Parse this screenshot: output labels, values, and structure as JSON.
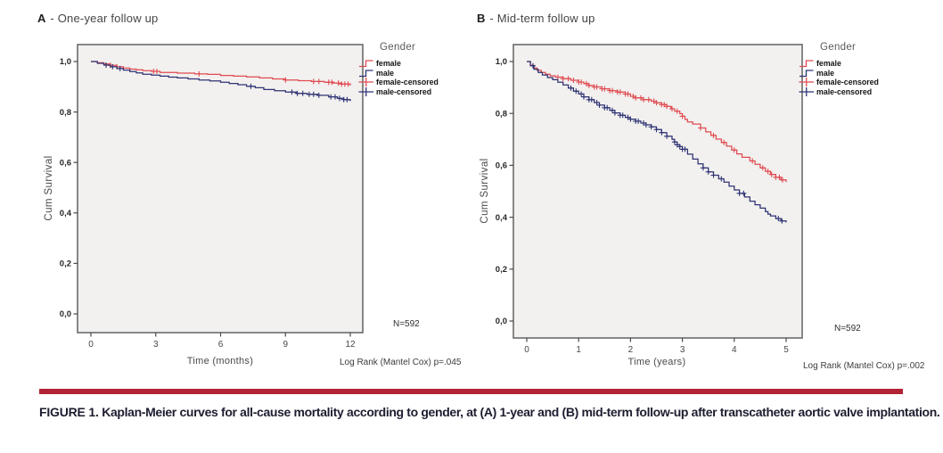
{
  "page": {
    "caption_bold": "FIGURE 1.",
    "caption_rest": " Kaplan-Meier curves for all-cause mortality according to gender, at (A) 1-year and (B) mid-term follow-up after transcatheter aortic valve implantation."
  },
  "colors": {
    "female": "#df4a50",
    "male": "#2f3273",
    "plot_bg": "#f2f1ef",
    "frame": "#6b6b6b",
    "tick": "#4a4a4a",
    "accent_bar": "#b22335"
  },
  "chart_data": [
    {
      "id": "A",
      "type": "line",
      "panel_label": "A",
      "title_text": " - One-year follow up",
      "title": "A - One-year follow up",
      "xlabel": "Time (months)",
      "ylabel": "Cum Survival",
      "xlim": [
        0,
        12
      ],
      "ylim": [
        0.0,
        1.0
      ],
      "xticks": [
        0,
        3,
        6,
        9,
        12
      ],
      "ytick_values": [
        1.0,
        0.8,
        0.6,
        0.4,
        0.2,
        0.0
      ],
      "ytick_labels": [
        "1,0",
        "0,8",
        "0,6",
        "0,4",
        "0,2",
        "0,0"
      ],
      "grid": false,
      "legend": {
        "position": "right-top",
        "title": "Gender",
        "entries": [
          "female",
          "male",
          "female-censored",
          "male-censored"
        ]
      },
      "n_label": "N=592",
      "logrank_label": "Log Rank (Mantel Cox) p=.045",
      "series": [
        {
          "name": "female",
          "color_key": "female",
          "points": [
            [
              0,
              1.0
            ],
            [
              0.3,
              0.995
            ],
            [
              0.6,
              0.99
            ],
            [
              0.9,
              0.985
            ],
            [
              1.2,
              0.979
            ],
            [
              1.5,
              0.974
            ],
            [
              1.8,
              0.97
            ],
            [
              2.1,
              0.967
            ],
            [
              2.4,
              0.964
            ],
            [
              2.8,
              0.961
            ],
            [
              3.2,
              0.957
            ],
            [
              4.0,
              0.954
            ],
            [
              4.8,
              0.951
            ],
            [
              5.4,
              0.949
            ],
            [
              6.0,
              0.945
            ],
            [
              6.6,
              0.942
            ],
            [
              7.2,
              0.939
            ],
            [
              7.8,
              0.935
            ],
            [
              8.4,
              0.931
            ],
            [
              9.0,
              0.927
            ],
            [
              9.6,
              0.924
            ],
            [
              10.2,
              0.921
            ],
            [
              10.8,
              0.918
            ],
            [
              11.2,
              0.915
            ],
            [
              11.6,
              0.911
            ],
            [
              12,
              0.905
            ]
          ],
          "censored_times": [
            0.9,
            1.2,
            2.9,
            3.05,
            5.0,
            9.0,
            10.3,
            10.55,
            11.0,
            11.15,
            11.45,
            11.6,
            11.75,
            11.9
          ]
        },
        {
          "name": "male",
          "color_key": "male",
          "points": [
            [
              0,
              1.0
            ],
            [
              0.3,
              0.993
            ],
            [
              0.6,
              0.986
            ],
            [
              0.9,
              0.979
            ],
            [
              1.2,
              0.972
            ],
            [
              1.5,
              0.966
            ],
            [
              1.8,
              0.96
            ],
            [
              2.1,
              0.955
            ],
            [
              2.4,
              0.95
            ],
            [
              2.8,
              0.946
            ],
            [
              3.2,
              0.942
            ],
            [
              3.6,
              0.938
            ],
            [
              4.0,
              0.935
            ],
            [
              4.5,
              0.931
            ],
            [
              5.0,
              0.927
            ],
            [
              5.5,
              0.923
            ],
            [
              6.0,
              0.918
            ],
            [
              6.4,
              0.913
            ],
            [
              6.8,
              0.908
            ],
            [
              7.2,
              0.902
            ],
            [
              7.6,
              0.896
            ],
            [
              8.0,
              0.889
            ],
            [
              8.5,
              0.884
            ],
            [
              9.0,
              0.879
            ],
            [
              9.5,
              0.874
            ],
            [
              10.0,
              0.87
            ],
            [
              10.5,
              0.866
            ],
            [
              11.0,
              0.86
            ],
            [
              11.4,
              0.854
            ],
            [
              11.7,
              0.849
            ],
            [
              12,
              0.843
            ]
          ],
          "censored_times": [
            0.7,
            1.0,
            1.35,
            7.4,
            9.3,
            9.55,
            9.8,
            10.1,
            10.3,
            10.55,
            11.1,
            11.3,
            11.5,
            11.7,
            11.85
          ]
        }
      ]
    },
    {
      "id": "B",
      "type": "line",
      "panel_label": "B",
      "title_text": " - Mid-term follow up",
      "title": "B - Mid-term follow up",
      "xlabel": "Time (years)",
      "ylabel": "Cum Survival",
      "xlim": [
        0,
        5
      ],
      "ylim": [
        0.0,
        1.0
      ],
      "xticks": [
        0,
        1,
        2,
        3,
        4,
        5
      ],
      "ytick_values": [
        1.0,
        0.8,
        0.6,
        0.4,
        0.2,
        0.0
      ],
      "ytick_labels": [
        "1,0",
        "0,8",
        "0,6",
        "0,4",
        "0,2",
        "0,0"
      ],
      "grid": false,
      "legend": {
        "position": "right-top",
        "title": "Gender",
        "entries": [
          "female",
          "male",
          "female-censored",
          "male-censored"
        ]
      },
      "n_label": "N=592",
      "logrank_label": "Log Rank (Mantel Cox) p=.002",
      "series": [
        {
          "name": "female",
          "color_key": "female",
          "points": [
            [
              0,
              1.0
            ],
            [
              0.07,
              0.986
            ],
            [
              0.13,
              0.975
            ],
            [
              0.2,
              0.966
            ],
            [
              0.28,
              0.958
            ],
            [
              0.36,
              0.951
            ],
            [
              0.45,
              0.945
            ],
            [
              0.55,
              0.94
            ],
            [
              0.7,
              0.934
            ],
            [
              0.85,
              0.928
            ],
            [
              1.0,
              0.921
            ],
            [
              1.1,
              0.915
            ],
            [
              1.2,
              0.908
            ],
            [
              1.3,
              0.902
            ],
            [
              1.45,
              0.895
            ],
            [
              1.6,
              0.888
            ],
            [
              1.75,
              0.882
            ],
            [
              1.9,
              0.875
            ],
            [
              2.0,
              0.866
            ],
            [
              2.1,
              0.86
            ],
            [
              2.25,
              0.853
            ],
            [
              2.4,
              0.847
            ],
            [
              2.5,
              0.841
            ],
            [
              2.6,
              0.834
            ],
            [
              2.7,
              0.827
            ],
            [
              2.78,
              0.818
            ],
            [
              2.85,
              0.809
            ],
            [
              2.95,
              0.799
            ],
            [
              3.0,
              0.789
            ],
            [
              3.05,
              0.777
            ],
            [
              3.1,
              0.767
            ],
            [
              3.2,
              0.759
            ],
            [
              3.35,
              0.744
            ],
            [
              3.45,
              0.729
            ],
            [
              3.55,
              0.715
            ],
            [
              3.65,
              0.701
            ],
            [
              3.75,
              0.688
            ],
            [
              3.85,
              0.674
            ],
            [
              3.95,
              0.659
            ],
            [
              4.05,
              0.644
            ],
            [
              4.15,
              0.631
            ],
            [
              4.3,
              0.617
            ],
            [
              4.4,
              0.604
            ],
            [
              4.5,
              0.59
            ],
            [
              4.6,
              0.577
            ],
            [
              4.7,
              0.565
            ],
            [
              4.8,
              0.554
            ],
            [
              4.9,
              0.544
            ],
            [
              5.0,
              0.535
            ]
          ],
          "censored_times": [
            0.6,
            0.7,
            0.8,
            0.9,
            1.0,
            1.05,
            1.15,
            1.2,
            1.3,
            1.35,
            1.45,
            1.5,
            1.6,
            1.65,
            1.75,
            1.8,
            1.9,
            1.95,
            2.05,
            2.1,
            2.2,
            2.25,
            2.35,
            2.45,
            2.5,
            2.6,
            2.65,
            2.7,
            2.8,
            2.9,
            3.0,
            3.35,
            3.6,
            3.8,
            4.0,
            4.35,
            4.55,
            4.65,
            4.72,
            4.8,
            4.87,
            4.93
          ]
        },
        {
          "name": "male",
          "color_key": "male",
          "points": [
            [
              0,
              1.0
            ],
            [
              0.07,
              0.984
            ],
            [
              0.14,
              0.97
            ],
            [
              0.22,
              0.958
            ],
            [
              0.3,
              0.948
            ],
            [
              0.4,
              0.938
            ],
            [
              0.5,
              0.93
            ],
            [
              0.6,
              0.92
            ],
            [
              0.7,
              0.91
            ],
            [
              0.8,
              0.898
            ],
            [
              0.9,
              0.886
            ],
            [
              1.0,
              0.875
            ],
            [
              1.1,
              0.864
            ],
            [
              1.2,
              0.853
            ],
            [
              1.3,
              0.842
            ],
            [
              1.4,
              0.832
            ],
            [
              1.5,
              0.822
            ],
            [
              1.6,
              0.812
            ],
            [
              1.7,
              0.802
            ],
            [
              1.8,
              0.793
            ],
            [
              1.9,
              0.785
            ],
            [
              2.0,
              0.778
            ],
            [
              2.1,
              0.77
            ],
            [
              2.2,
              0.763
            ],
            [
              2.3,
              0.756
            ],
            [
              2.4,
              0.748
            ],
            [
              2.5,
              0.738
            ],
            [
              2.6,
              0.726
            ],
            [
              2.7,
              0.712
            ],
            [
              2.8,
              0.7
            ],
            [
              2.85,
              0.69
            ],
            [
              2.9,
              0.679
            ],
            [
              2.95,
              0.672
            ],
            [
              3.0,
              0.662
            ],
            [
              3.1,
              0.643
            ],
            [
              3.2,
              0.624
            ],
            [
              3.3,
              0.606
            ],
            [
              3.4,
              0.59
            ],
            [
              3.5,
              0.575
            ],
            [
              3.6,
              0.562
            ],
            [
              3.7,
              0.548
            ],
            [
              3.8,
              0.535
            ],
            [
              3.9,
              0.52
            ],
            [
              4.0,
              0.505
            ],
            [
              4.1,
              0.492
            ],
            [
              4.2,
              0.478
            ],
            [
              4.3,
              0.462
            ],
            [
              4.4,
              0.448
            ],
            [
              4.5,
              0.435
            ],
            [
              4.6,
              0.422
            ],
            [
              4.65,
              0.412
            ],
            [
              4.7,
              0.405
            ],
            [
              4.8,
              0.395
            ],
            [
              4.9,
              0.386
            ],
            [
              5.0,
              0.38
            ]
          ],
          "censored_times": [
            0.12,
            0.85,
            0.95,
            1.05,
            1.1,
            1.2,
            1.25,
            1.35,
            1.4,
            1.5,
            1.55,
            1.65,
            1.7,
            1.8,
            1.85,
            1.95,
            2.0,
            2.1,
            2.15,
            2.25,
            2.3,
            2.4,
            2.5,
            2.6,
            2.7,
            2.85,
            2.9,
            2.95,
            3.0,
            3.05,
            3.4,
            3.5,
            3.6,
            3.75,
            4.1,
            4.18,
            4.85,
            4.92
          ]
        }
      ]
    }
  ]
}
